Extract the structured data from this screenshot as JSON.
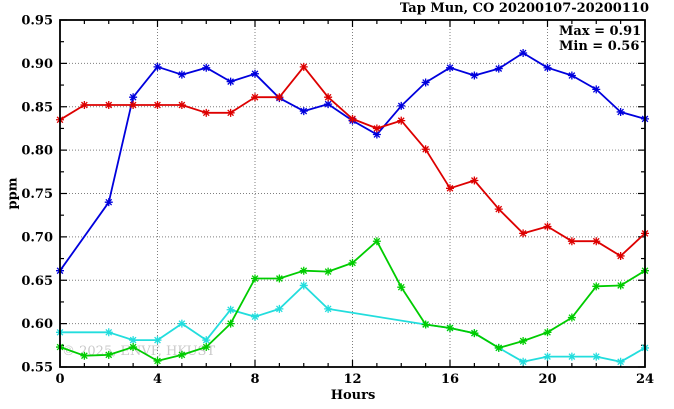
{
  "watermark": {
    "text": "© 2025, ENVF, HKUST"
  },
  "chart_data": {
    "type": "line",
    "title": "Tap Mun, CO 20200107-20200110",
    "xlabel": "Hours",
    "ylabel": "ppm",
    "xlim": [
      0,
      24
    ],
    "ylim": [
      0.55,
      0.95
    ],
    "xticks": [
      {
        "v": 0,
        "label": "0"
      },
      {
        "v": 4,
        "label": "4"
      },
      {
        "v": 8,
        "label": "8"
      },
      {
        "v": 12,
        "label": "12"
      },
      {
        "v": 16,
        "label": "16"
      },
      {
        "v": 20,
        "label": "20"
      },
      {
        "v": 24,
        "label": "24"
      }
    ],
    "yticks": [
      {
        "v": 0.55,
        "label": "0.55"
      },
      {
        "v": 0.6,
        "label": "0.60"
      },
      {
        "v": 0.65,
        "label": "0.65"
      },
      {
        "v": 0.7,
        "label": "0.70"
      },
      {
        "v": 0.75,
        "label": "0.75"
      },
      {
        "v": 0.8,
        "label": "0.80"
      },
      {
        "v": 0.85,
        "label": "0.85"
      },
      {
        "v": 0.9,
        "label": "0.90"
      },
      {
        "v": 0.95,
        "label": "0.95"
      }
    ],
    "xtick_minor_step": 1,
    "ytick_minor_step": 0.025,
    "grid": true,
    "marker": "asterisk",
    "legend_position": "none",
    "annotations": [
      "Max = 0.91",
      "Min = 0.56"
    ],
    "x": [
      0,
      1,
      2,
      3,
      4,
      5,
      6,
      7,
      8,
      9,
      10,
      11,
      12,
      13,
      14,
      15,
      16,
      17,
      18,
      19,
      20,
      21,
      22,
      23,
      24
    ],
    "series": [
      {
        "name": "cyan",
        "color": "#22dddd",
        "values": [
          0.59,
          null,
          0.59,
          0.581,
          0.581,
          0.6,
          0.581,
          0.616,
          0.608,
          0.617,
          0.644,
          0.617,
          null,
          null,
          null,
          0.599,
          0.595,
          0.589,
          0.572,
          0.556,
          0.562,
          0.562,
          0.562,
          0.556,
          0.572
        ]
      },
      {
        "name": "green",
        "color": "#00cc00",
        "values": [
          0.573,
          0.563,
          0.564,
          0.573,
          0.557,
          0.564,
          0.573,
          0.6,
          0.652,
          0.652,
          0.661,
          0.66,
          0.67,
          0.695,
          0.642,
          0.599,
          0.595,
          0.589,
          0.572,
          0.58,
          0.59,
          0.607,
          0.643,
          0.644,
          0.661
        ]
      },
      {
        "name": "blue",
        "color": "#0000dd",
        "values": [
          0.661,
          null,
          0.74,
          0.861,
          0.896,
          0.887,
          0.895,
          0.879,
          0.888,
          0.86,
          0.845,
          0.853,
          0.834,
          0.818,
          0.851,
          0.878,
          0.895,
          0.886,
          0.894,
          0.912,
          0.895,
          0.886,
          0.87,
          0.844,
          0.836
        ]
      },
      {
        "name": "red",
        "color": "#dd0000",
        "values": [
          0.835,
          0.852,
          0.852,
          0.852,
          0.852,
          0.852,
          0.843,
          0.843,
          0.861,
          0.861,
          0.896,
          0.861,
          0.836,
          0.825,
          0.834,
          0.801,
          0.756,
          0.765,
          0.732,
          0.704,
          0.712,
          0.695,
          0.695,
          0.678,
          0.704
        ]
      }
    ]
  }
}
